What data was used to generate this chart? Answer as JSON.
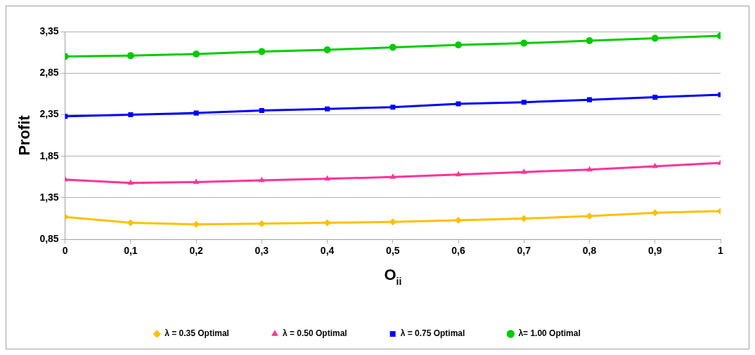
{
  "chart_data": {
    "type": "line",
    "xlabel": "O$_{ii}$",
    "ylabel": "Profit",
    "x": [
      0,
      0.1,
      0.2,
      0.3,
      0.4,
      0.5,
      0.6,
      0.7,
      0.8,
      0.9,
      1
    ],
    "series": [
      {
        "name": "λ = 0.35 Optimal",
        "color": "#ffc000",
        "marker": "diamond",
        "values": [
          1.12,
          1.05,
          1.03,
          1.04,
          1.05,
          1.06,
          1.08,
          1.1,
          1.13,
          1.17,
          1.19
        ]
      },
      {
        "name": "λ = 0.50 Optimal",
        "color": "#ff3399",
        "marker": "triangle",
        "values": [
          1.57,
          1.53,
          1.54,
          1.56,
          1.58,
          1.6,
          1.63,
          1.66,
          1.69,
          1.73,
          1.77
        ]
      },
      {
        "name": "λ = 0.75 Optimal",
        "color": "#0000ff",
        "marker": "square",
        "values": [
          2.33,
          2.35,
          2.37,
          2.4,
          2.42,
          2.44,
          2.48,
          2.5,
          2.53,
          2.56,
          2.59
        ]
      },
      {
        "name": "λ= 1.00 Optimal",
        "color": "#00cc00",
        "marker": "circle",
        "values": [
          3.05,
          3.06,
          3.08,
          3.11,
          3.13,
          3.16,
          3.19,
          3.21,
          3.24,
          3.27,
          3.3
        ]
      }
    ],
    "xlim": [
      0,
      1
    ],
    "xticks": [
      {
        "value": 0,
        "label": "0"
      },
      {
        "value": 0.1,
        "label": "0,1"
      },
      {
        "value": 0.2,
        "label": "0,2"
      },
      {
        "value": 0.3,
        "label": "0,3"
      },
      {
        "value": 0.4,
        "label": "0,4"
      },
      {
        "value": 0.5,
        "label": "0,5"
      },
      {
        "value": 0.6,
        "label": "0,6"
      },
      {
        "value": 0.7,
        "label": "0,7"
      },
      {
        "value": 0.8,
        "label": "0,8"
      },
      {
        "value": 0.9,
        "label": "0,9"
      },
      {
        "value": 1,
        "label": "1"
      }
    ],
    "ylim": [
      0.85,
      3.35
    ],
    "yticks": [
      {
        "value": 0.85,
        "label": "0,85"
      },
      {
        "value": 1.35,
        "label": "1,35"
      },
      {
        "value": 1.85,
        "label": "1,85"
      },
      {
        "value": 2.35,
        "label": "2,35"
      },
      {
        "value": 2.85,
        "label": "2,85"
      },
      {
        "value": 3.35,
        "label": "3,35"
      }
    ],
    "grid": "y",
    "legend": "bottom",
    "line_style": "solid"
  }
}
